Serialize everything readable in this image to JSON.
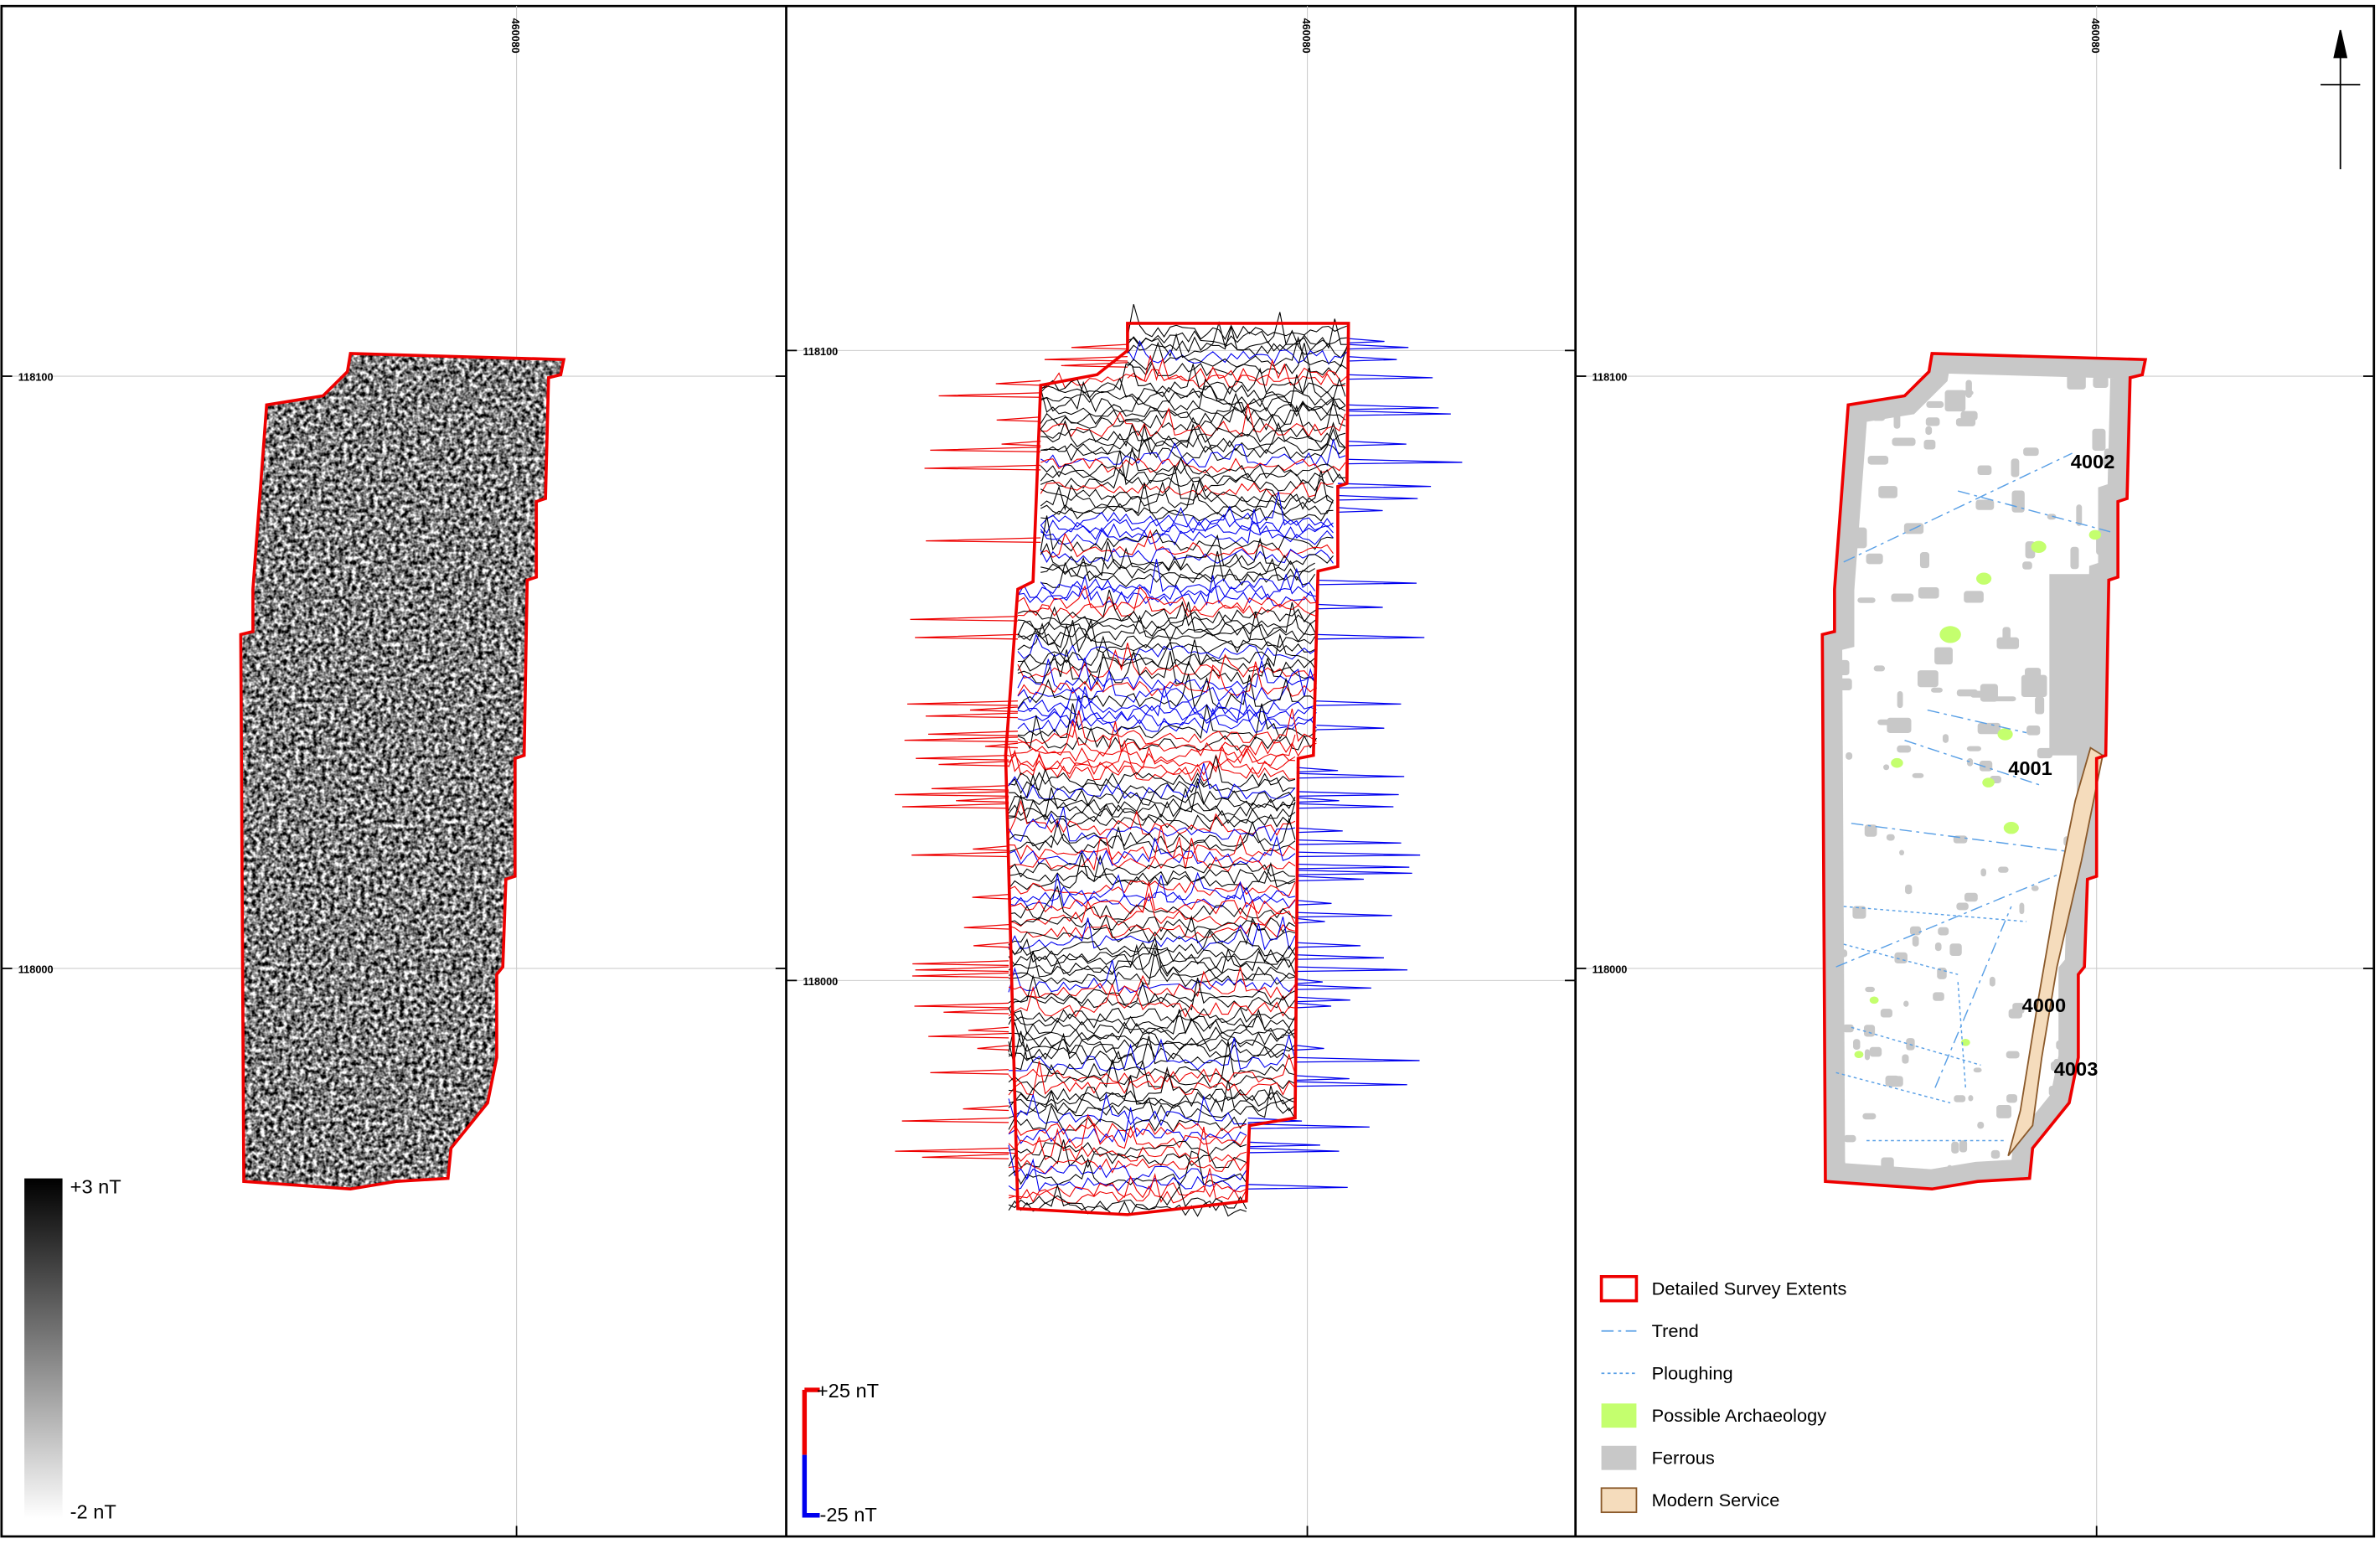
{
  "panels": [
    {
      "easting": "460080",
      "northings": [
        "118100",
        "118000"
      ],
      "scale": {
        "max": "+3 nT",
        "min": "-2 nT"
      }
    },
    {
      "easting": "460080",
      "northings": [
        "118100",
        "118000"
      ],
      "scale": {
        "max": "+25 nT",
        "min": "-25 nT"
      }
    },
    {
      "easting": "460080",
      "northings": [
        "118100",
        "118000"
      ],
      "labels": [
        "4002",
        "4001",
        "4000",
        "4003"
      ]
    }
  ],
  "legend": [
    "Detailed Survey Extents",
    "Trend",
    "Ploughing",
    "Possible Archaeology",
    "Ferrous",
    "Modern Service"
  ]
}
